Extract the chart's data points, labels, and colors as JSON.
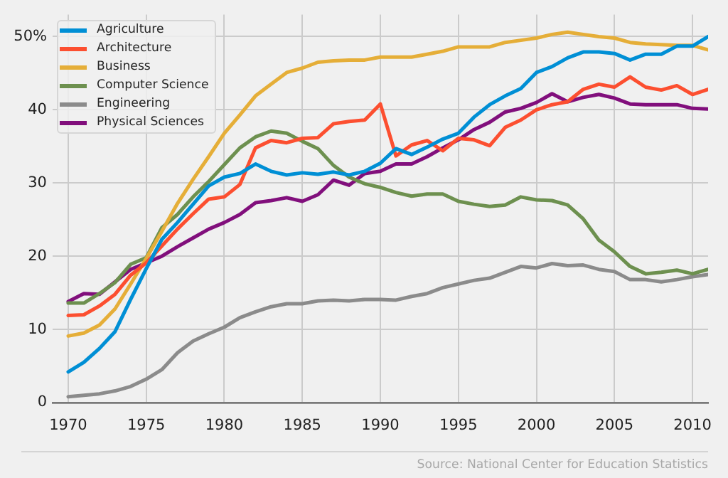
{
  "chart_data": {
    "type": "line",
    "x": [
      1970,
      1971,
      1972,
      1973,
      1974,
      1975,
      1976,
      1977,
      1978,
      1979,
      1980,
      1981,
      1982,
      1983,
      1984,
      1985,
      1986,
      1987,
      1988,
      1989,
      1990,
      1991,
      1992,
      1993,
      1994,
      1995,
      1996,
      1997,
      1998,
      1999,
      2000,
      2001,
      2002,
      2003,
      2004,
      2005,
      2006,
      2007,
      2008,
      2009,
      2010,
      2011
    ],
    "series": [
      {
        "name": "Agriculture",
        "color": "#008fd5",
        "values": [
          4.2,
          5.5,
          7.4,
          9.7,
          14.1,
          18.3,
          22.3,
          24.6,
          27.1,
          29.6,
          30.8,
          31.3,
          32.6,
          31.6,
          31.1,
          31.4,
          31.2,
          31.5,
          31.1,
          31.6,
          32.7,
          34.7,
          33.9,
          34.9,
          36.0,
          36.8,
          39.0,
          40.7,
          41.9,
          42.9,
          45.1,
          45.9,
          47.1,
          47.9,
          47.9,
          47.7,
          46.8,
          47.6,
          47.6,
          48.7,
          48.7,
          50.0
        ]
      },
      {
        "name": "Architecture",
        "color": "#fc4f30",
        "values": [
          11.9,
          12.0,
          13.2,
          14.8,
          17.4,
          19.1,
          21.4,
          23.7,
          25.8,
          27.8,
          28.1,
          29.8,
          34.8,
          35.8,
          35.5,
          36.1,
          36.2,
          38.1,
          38.4,
          38.6,
          40.8,
          33.7,
          35.2,
          35.8,
          34.4,
          36.1,
          35.9,
          35.1,
          37.6,
          38.6,
          40.0,
          40.7,
          41.1,
          42.8,
          43.5,
          43.1,
          44.5,
          43.1,
          42.7,
          43.3,
          42.1,
          42.8
        ]
      },
      {
        "name": "Business",
        "color": "#e5ae38",
        "values": [
          9.1,
          9.5,
          10.6,
          12.8,
          16.2,
          19.7,
          23.4,
          27.2,
          30.5,
          33.6,
          36.8,
          39.3,
          41.9,
          43.5,
          45.1,
          45.7,
          46.5,
          46.7,
          46.8,
          46.8,
          47.2,
          47.2,
          47.2,
          47.6,
          48.0,
          48.6,
          48.6,
          48.6,
          49.2,
          49.5,
          49.8,
          50.3,
          50.6,
          50.3,
          50.0,
          49.8,
          49.2,
          49.0,
          48.9,
          48.8,
          48.8,
          48.2
        ]
      },
      {
        "name": "Computer Science",
        "color": "#6d904f",
        "values": [
          13.6,
          13.6,
          14.9,
          16.4,
          18.9,
          19.8,
          23.9,
          25.7,
          28.1,
          30.2,
          32.5,
          34.8,
          36.3,
          37.1,
          36.8,
          35.7,
          34.7,
          32.4,
          30.8,
          29.9,
          29.4,
          28.7,
          28.2,
          28.5,
          28.5,
          27.5,
          27.1,
          26.8,
          27.0,
          28.1,
          27.7,
          27.6,
          27.0,
          25.1,
          22.2,
          20.6,
          18.6,
          17.6,
          17.8,
          18.1,
          17.6,
          18.2
        ]
      },
      {
        "name": "Engineering",
        "color": "#8b8b8b",
        "values": [
          0.8,
          1.0,
          1.2,
          1.6,
          2.2,
          3.2,
          4.5,
          6.8,
          8.4,
          9.4,
          10.3,
          11.6,
          12.4,
          13.1,
          13.5,
          13.5,
          13.9,
          14.0,
          13.9,
          14.1,
          14.1,
          14.0,
          14.5,
          14.9,
          15.7,
          16.2,
          16.7,
          17.0,
          17.8,
          18.6,
          18.4,
          19.0,
          18.7,
          18.8,
          18.2,
          17.9,
          16.8,
          16.8,
          16.5,
          16.8,
          17.2,
          17.5
        ]
      },
      {
        "name": "Physical Sciences",
        "color": "#810f7c",
        "values": [
          13.8,
          14.9,
          14.8,
          16.5,
          18.2,
          19.1,
          20.0,
          21.3,
          22.5,
          23.7,
          24.6,
          25.7,
          27.3,
          27.6,
          28.0,
          27.5,
          28.4,
          30.4,
          29.7,
          31.3,
          31.6,
          32.6,
          32.6,
          33.6,
          34.8,
          35.9,
          37.3,
          38.3,
          39.7,
          40.2,
          41.0,
          42.2,
          41.1,
          41.7,
          42.1,
          41.6,
          40.8,
          40.7,
          40.7,
          40.7,
          40.2,
          40.1
        ]
      }
    ],
    "xlim": [
      1969,
      2011
    ],
    "xticks": [
      1970,
      1975,
      1980,
      1985,
      1990,
      1995,
      2000,
      2005,
      2010
    ],
    "ylim": [
      0,
      53
    ],
    "yticks": [
      0,
      10,
      20,
      30,
      40,
      {
        "value": 50,
        "label": "50%"
      }
    ],
    "grid": true,
    "legend": "top left",
    "annotations": [
      "Source: National Center for Education Statistics"
    ]
  }
}
